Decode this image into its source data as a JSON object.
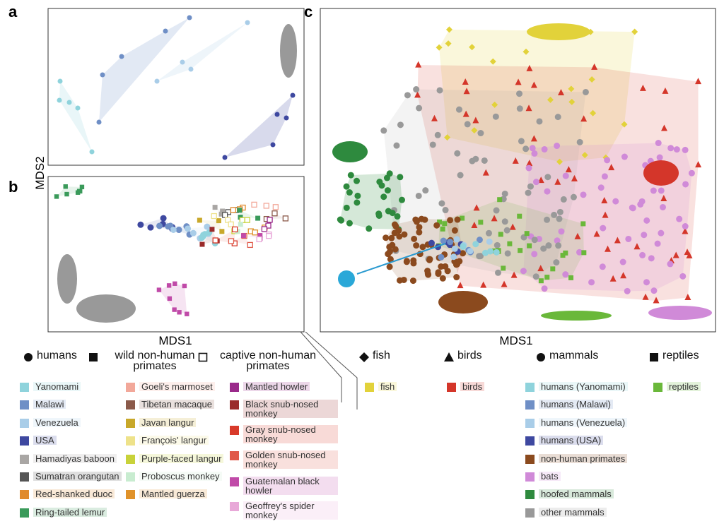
{
  "panels": {
    "a": "a",
    "b": "b",
    "c": "c"
  },
  "axes": {
    "y_label": "MDS2",
    "x_label_b": "MDS1",
    "x_label_c": "MDS1"
  },
  "legend_left": {
    "shapes": [
      {
        "shape": "circle",
        "label": "humans"
      },
      {
        "shape": "square",
        "label": "wild non-human primates"
      },
      {
        "shape": "open-square",
        "label": "captive non-human primates"
      }
    ],
    "columns": [
      [
        {
          "label": "Yanomami",
          "color": "#8fd3dc"
        },
        {
          "label": "Malawi",
          "color": "#6f8fc6"
        },
        {
          "label": "Venezuela",
          "color": "#a9cde8"
        },
        {
          "label": "USA",
          "color": "#3e48a0"
        },
        {
          "label": "Hamadiyas baboon",
          "color": "#a9a6a4"
        },
        {
          "label": "Sumatran orangutan",
          "color": "#555555"
        },
        {
          "label": "Red-shanked duoc",
          "color": "#e08a2c"
        },
        {
          "label": "Ring-tailed lemur",
          "color": "#3a9a5a"
        }
      ],
      [
        {
          "label": "Goeli's marmoset",
          "color": "#f2a89a"
        },
        {
          "label": "Tibetan macaque",
          "color": "#8b5a4a"
        },
        {
          "label": "Javan langur",
          "color": "#c8a82a"
        },
        {
          "label": "François' langur",
          "color": "#eee28a"
        },
        {
          "label": "Purple-faced langur",
          "color": "#c8d23a"
        },
        {
          "label": "Proboscus monkey",
          "color": "#c8ecd0"
        },
        {
          "label": "Mantled guerza",
          "color": "#e0922a"
        }
      ],
      [
        {
          "label": "Mantled howler",
          "color": "#9a2a8a"
        },
        {
          "label": "Black snub-nosed monkey",
          "color": "#9a2a2a"
        },
        {
          "label": "Gray snub-nosed monkey",
          "color": "#d83a2a"
        },
        {
          "label": "Golden snub-nosed monkey",
          "color": "#e05a4a"
        },
        {
          "label": "Guatemalan black howler",
          "color": "#c04aa8"
        },
        {
          "label": "Geoffrey's spider monkey",
          "color": "#e8a8d8"
        }
      ]
    ]
  },
  "legend_right": {
    "shapes": [
      {
        "shape": "diamond",
        "label": "fish"
      },
      {
        "shape": "triangle",
        "label": "birds"
      },
      {
        "shape": "circle",
        "label": "mammals"
      },
      {
        "shape": "square",
        "label": "reptiles"
      }
    ],
    "columns": [
      [
        {
          "label": "fish",
          "color": "#e2d23a"
        }
      ],
      [
        {
          "label": "birds",
          "color": "#d4362a"
        }
      ],
      [
        {
          "label": "humans (Yanomami)",
          "color": "#8fd3dc"
        },
        {
          "label": "humans (Malawi)",
          "color": "#6f8fc6"
        },
        {
          "label": "humans (Venezuela)",
          "color": "#a9cde8"
        },
        {
          "label": "humans (USA)",
          "color": "#3e48a0"
        },
        {
          "label": "non-human primates",
          "color": "#8b4a1e"
        },
        {
          "label": "bats",
          "color": "#d08ad8"
        },
        {
          "label": "hoofed mammals",
          "color": "#2e8a3e"
        },
        {
          "label": "other mammals",
          "color": "#999999"
        }
      ],
      [
        {
          "label": "reptiles",
          "color": "#6ab83a"
        }
      ]
    ]
  }
}
